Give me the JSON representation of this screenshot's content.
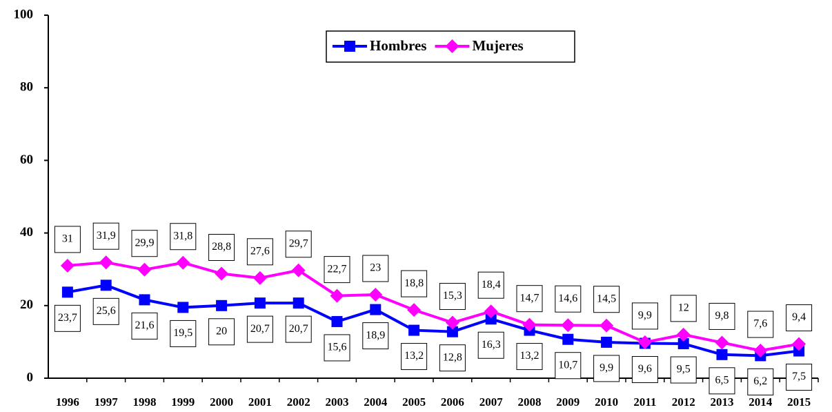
{
  "chart_data": {
    "type": "line",
    "categories": [
      "1996",
      "1997",
      "1998",
      "1999",
      "2000",
      "2001",
      "2002",
      "2003",
      "2004",
      "2005",
      "2006",
      "2007",
      "2008",
      "2009",
      "2010",
      "2011",
      "2012",
      "2013",
      "2014",
      "2015"
    ],
    "series": [
      {
        "name": "Hombres",
        "color": "#0000ff",
        "marker": "square",
        "values": [
          23.7,
          25.6,
          21.6,
          19.5,
          20,
          20.7,
          20.7,
          15.6,
          18.9,
          13.2,
          12.8,
          16.3,
          13.2,
          10.7,
          9.9,
          9.6,
          9.5,
          6.5,
          6.2,
          7.5
        ],
        "value_labels": [
          "23,7",
          "25,6",
          "21,6",
          "19,5",
          "20",
          "20,7",
          "20,7",
          "15,6",
          "18,9",
          "13,2",
          "12,8",
          "16,3",
          "13,2",
          "10,7",
          "9,9",
          "9,6",
          "9,5",
          "6,5",
          "6,2",
          "7,5"
        ]
      },
      {
        "name": "Mujeres",
        "color": "#ff00ff",
        "marker": "diamond",
        "values": [
          31,
          31.9,
          29.9,
          31.8,
          28.8,
          27.6,
          29.7,
          22.7,
          23,
          18.8,
          15.3,
          18.4,
          14.7,
          14.6,
          14.5,
          9.9,
          12,
          9.8,
          7.6,
          9.4
        ],
        "value_labels": [
          "31",
          "31,9",
          "29,9",
          "31,8",
          "28,8",
          "27,6",
          "29,7",
          "22,7",
          "23",
          "18,8",
          "15,3",
          "18,4",
          "14,7",
          "14,6",
          "14,5",
          "9,9",
          "12",
          "9,8",
          "7,6",
          "9,4"
        ]
      }
    ],
    "ylim": [
      0,
      100
    ],
    "yticks": [
      0,
      20,
      40,
      60,
      80,
      100
    ],
    "grid": false,
    "legend": "top"
  }
}
